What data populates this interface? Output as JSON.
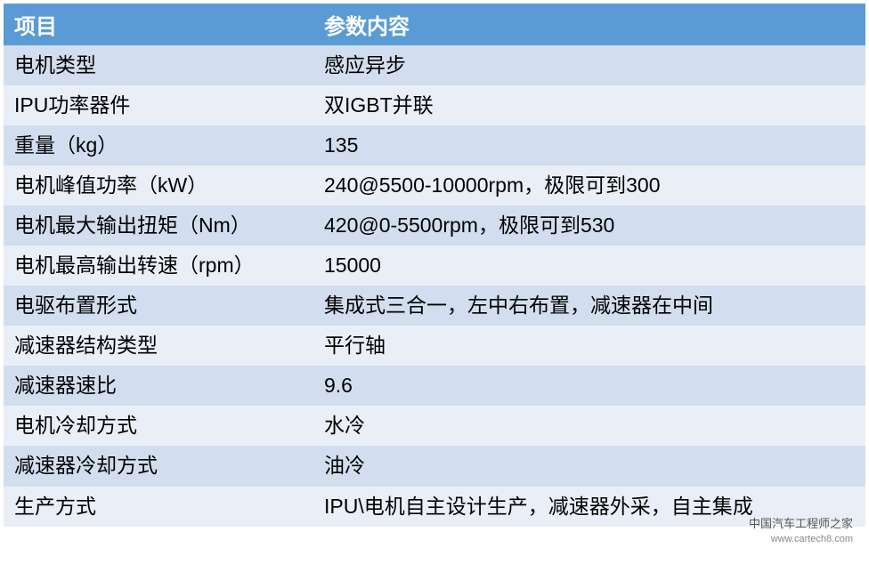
{
  "table": {
    "type": "table",
    "header_bg": "#5b9bd5",
    "header_color": "#ffffff",
    "row_even_bg": "#d2deef",
    "row_odd_bg": "#eaeff7",
    "text_color": "#000000",
    "header_fontsize": 24,
    "cell_fontsize": 23,
    "col1_width": 348,
    "columns": [
      "项目",
      "参数内容"
    ],
    "rows": [
      [
        "电机类型",
        "感应异步"
      ],
      [
        "IPU功率器件",
        "双IGBT并联"
      ],
      [
        "重量（kg）",
        "135"
      ],
      [
        "电机峰值功率（kW）",
        "240@5500-10000rpm，极限可到300"
      ],
      [
        "电机最大输出扭矩（Nm）",
        "420@0-5500rpm，极限可到530"
      ],
      [
        "电机最高输出转速（rpm）",
        "15000"
      ],
      [
        "电驱布置形式",
        "集成式三合一，左中右布置，减速器在中间"
      ],
      [
        "减速器结构类型",
        "平行轴"
      ],
      [
        "减速器速比",
        "9.6"
      ],
      [
        "电机冷却方式",
        "水冷"
      ],
      [
        "减速器冷却方式",
        "油冷"
      ],
      [
        "生产方式",
        "IPU\\电机自主设计生产，减速器外采，自主集成"
      ]
    ]
  },
  "watermark": {
    "line1": "中国汽车工程师之家",
    "line2": "www.cartech8.com"
  }
}
